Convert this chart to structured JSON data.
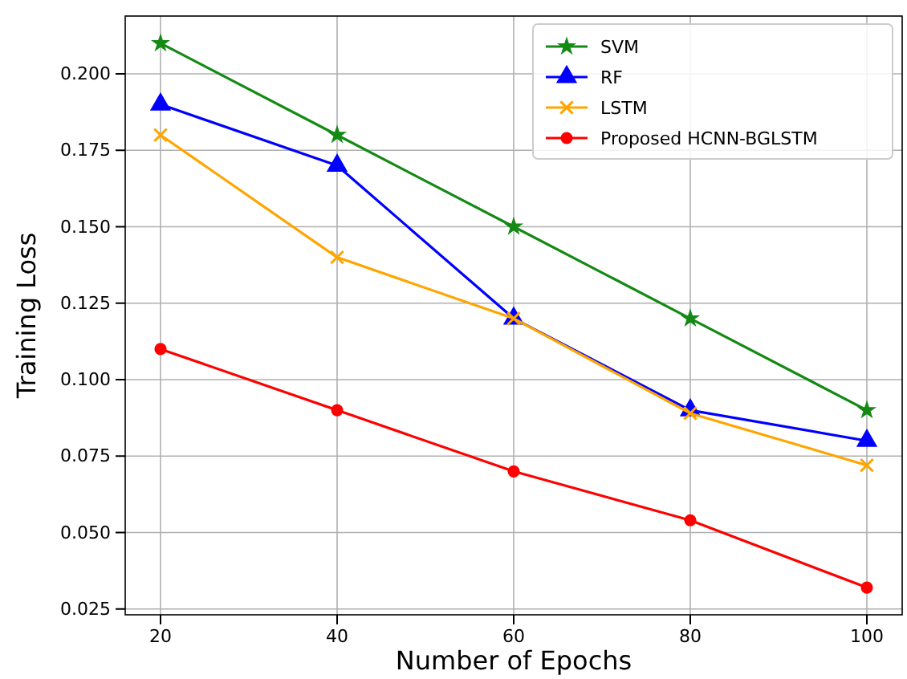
{
  "chart_data": {
    "type": "line",
    "xlabel": "Number of Epochs",
    "ylabel": "Training Loss",
    "x": [
      20,
      40,
      60,
      80,
      100
    ],
    "series": [
      {
        "name": "SVM",
        "color": "#138a13",
        "marker": "star",
        "values": [
          0.21,
          0.18,
          0.15,
          0.12,
          0.09
        ]
      },
      {
        "name": "RF",
        "color": "#0000ff",
        "marker": "triangle",
        "values": [
          0.19,
          0.17,
          0.12,
          0.09,
          0.08
        ]
      },
      {
        "name": "LSTM",
        "color": "#ffa500",
        "marker": "cross",
        "values": [
          0.18,
          0.14,
          0.12,
          0.089,
          0.072
        ]
      },
      {
        "name": "Proposed HCNN-BGLSTM",
        "color": "#ff0000",
        "marker": "circle",
        "values": [
          0.11,
          0.09,
          0.07,
          0.054,
          0.032
        ]
      }
    ],
    "xlim": [
      16,
      104
    ],
    "xticks": [
      20,
      40,
      60,
      80,
      100
    ],
    "ylim": [
      0.0231,
      0.2189
    ],
    "yticks": [
      0.025,
      {
        "value": 0.05,
        "label": "0.050"
      },
      0.075,
      {
        "value": 0.1,
        "label": "0.100"
      },
      0.125,
      {
        "value": 0.15,
        "label": "0.150"
      },
      0.175,
      {
        "value": 0.2,
        "label": "0.200"
      }
    ],
    "grid": true,
    "legend": "top right",
    "line_style": "solid"
  }
}
